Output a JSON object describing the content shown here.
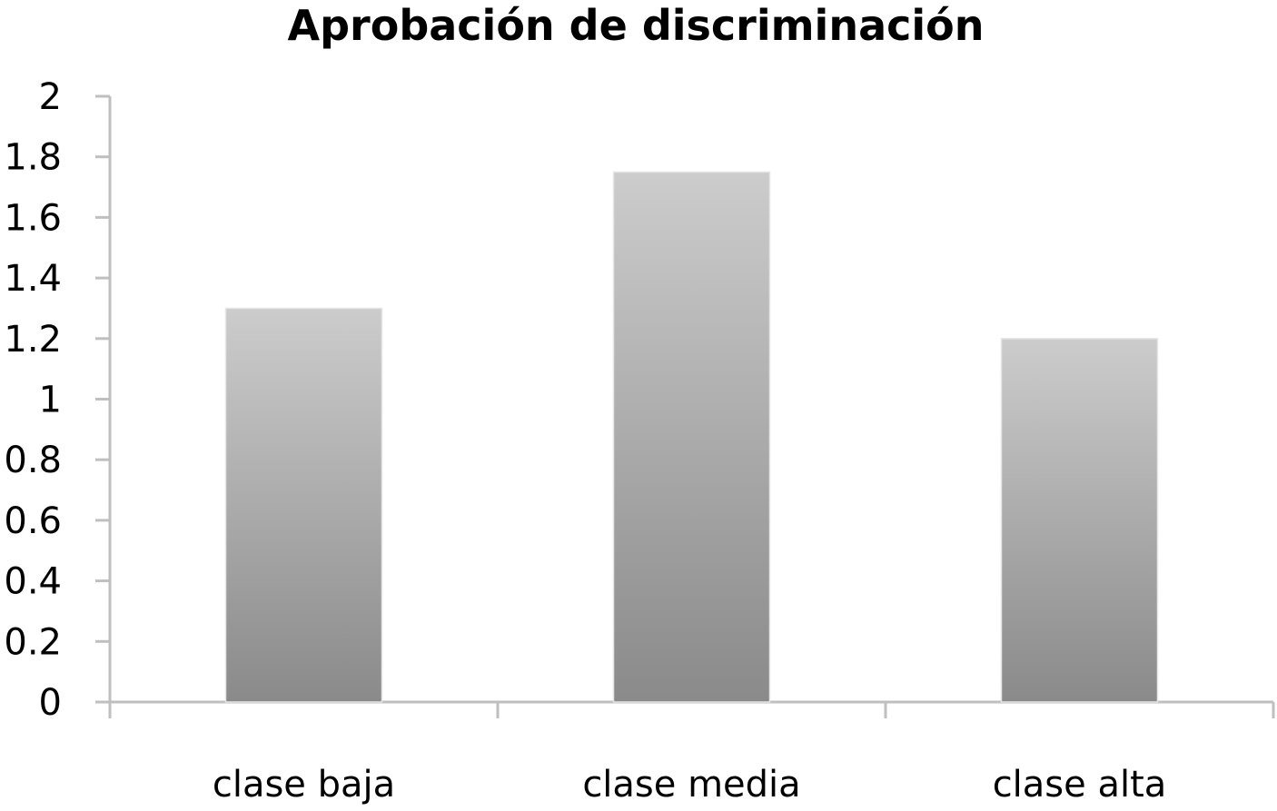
{
  "chart_data": {
    "type": "bar",
    "title": "Aprobación de discriminación",
    "xlabel": "",
    "ylabel": "",
    "categories": [
      "clase baja",
      "clase media",
      "clase alta"
    ],
    "series": [
      {
        "values": [
          1.3,
          1.75,
          1.2
        ]
      }
    ],
    "ylim": [
      0,
      2
    ],
    "yticks": [
      "0",
      "0.2",
      "0.4",
      "0.6",
      "0.8",
      "1",
      "1.2",
      "1.4",
      "1.6",
      "1.8",
      "2"
    ],
    "grid": false,
    "legend": "none",
    "colors": {
      "bar_top": "#cccccc",
      "bar_bottom": "#8a8a8a",
      "axis": "#bfbfbf"
    }
  }
}
